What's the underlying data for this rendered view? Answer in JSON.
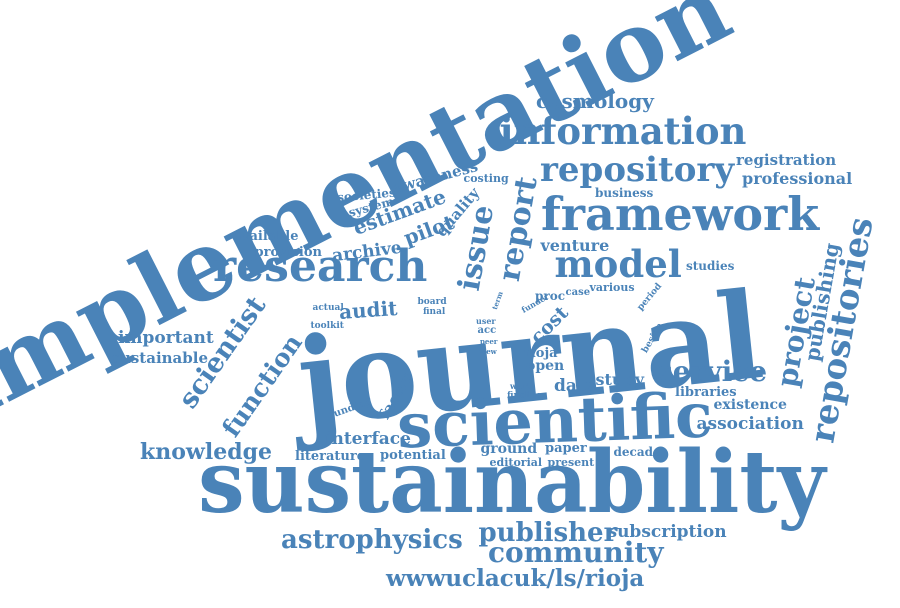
{
  "colors": {
    "word": "#4a83b8",
    "background": "#ffffff"
  },
  "words": [
    "implementation",
    "journal",
    "sustainability",
    "scientific",
    "framework",
    "research",
    "information",
    "repository",
    "repositories",
    "model",
    "report",
    "issue",
    "project",
    "publishing",
    "scientist",
    "function",
    "service",
    "community",
    "publisher",
    "astrophysics",
    "wwwuclacuk/ls/rioja",
    "knowledge",
    "cosmology",
    "registration",
    "professional",
    "audit",
    "archive",
    "estimate",
    "pilot",
    "quality",
    "awareness",
    "system",
    "societies",
    "costing",
    "business",
    "venture",
    "studies",
    "proc",
    "case",
    "various",
    "period",
    "beside",
    "important",
    "sustainable",
    "available",
    "provision",
    "actual",
    "toolkit",
    "board",
    "final",
    "term",
    "funder",
    "user",
    "acc",
    "peer",
    "view",
    "cost",
    "rioja",
    "open",
    "data",
    "study",
    "work",
    "finding",
    "libraries",
    "existence",
    "association",
    "factor",
    "funding",
    "interface",
    "literature",
    "potential",
    "ground",
    "paper",
    "editorial",
    "present",
    "decade",
    "subscription"
  ]
}
